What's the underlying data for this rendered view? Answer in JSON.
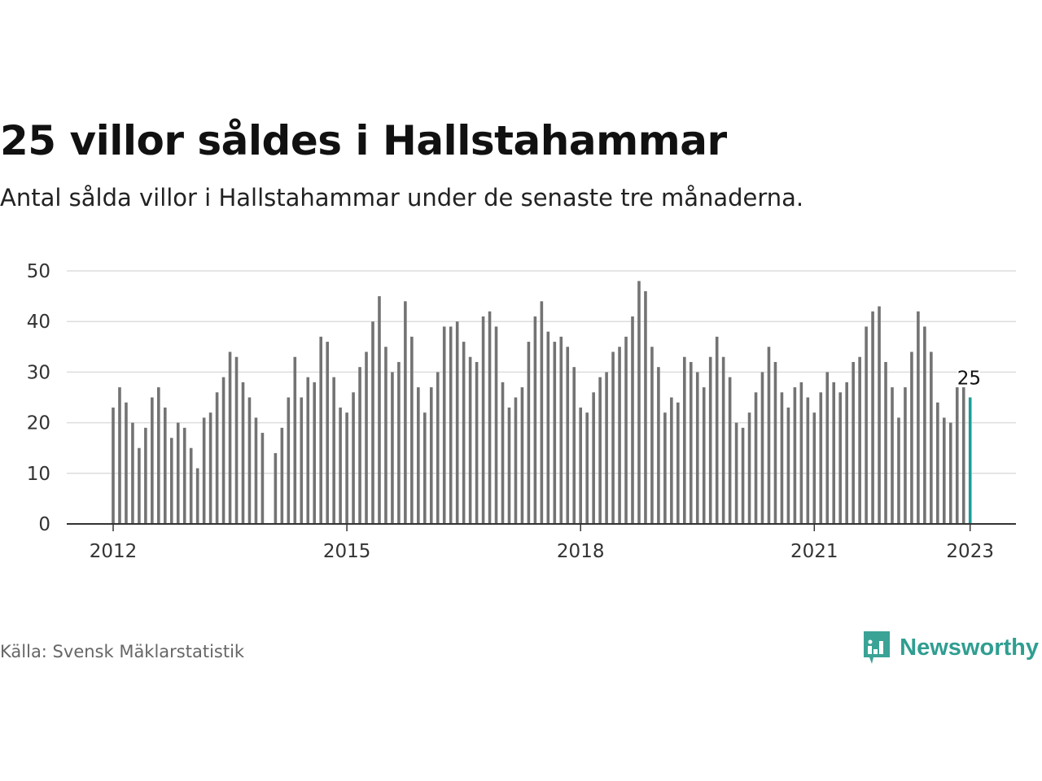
{
  "title": "25 villor såldes i Hallstahammar",
  "subtitle": "Antal sålda villor i Hallstahammar under de senaste tre månaderna.",
  "source": "Källa: Svensk Mäklarstatistik",
  "brand": "Newsworthy",
  "colors": {
    "bar": "#737373",
    "highlight": "#1a9e97",
    "grid": "#dddddd",
    "axis": "#333333",
    "brand": "#2f9e91"
  },
  "chart_data": {
    "type": "bar",
    "x_start": "2012-01",
    "x_end": "2023-01",
    "values": [
      23,
      27,
      24,
      20,
      15,
      19,
      25,
      27,
      23,
      17,
      20,
      19,
      15,
      11,
      21,
      22,
      26,
      29,
      34,
      33,
      28,
      25,
      21,
      18,
      null,
      14,
      19,
      25,
      33,
      25,
      29,
      28,
      37,
      36,
      29,
      23,
      22,
      26,
      31,
      34,
      40,
      45,
      35,
      30,
      32,
      44,
      37,
      27,
      22,
      27,
      30,
      39,
      39,
      40,
      36,
      33,
      32,
      41,
      42,
      39,
      28,
      23,
      25,
      27,
      36,
      41,
      44,
      38,
      36,
      37,
      35,
      31,
      23,
      22,
      26,
      29,
      30,
      34,
      35,
      37,
      41,
      48,
      46,
      35,
      31,
      22,
      25,
      24,
      33,
      32,
      30,
      27,
      33,
      37,
      33,
      29,
      20,
      19,
      22,
      26,
      30,
      35,
      32,
      26,
      23,
      27,
      28,
      25,
      22,
      26,
      30,
      28,
      26,
      28,
      32,
      33,
      39,
      42,
      43,
      32,
      27,
      21,
      27,
      34,
      42,
      39,
      34,
      24,
      21,
      20,
      27,
      27,
      25
    ],
    "highlight_last": true,
    "highlight_label": "25",
    "y_ticks": [
      0,
      10,
      20,
      30,
      40,
      50
    ],
    "x_ticks": [
      "2012",
      "2015",
      "2018",
      "2021",
      "2023"
    ],
    "ylim": [
      0,
      50
    ],
    "grid": true
  }
}
